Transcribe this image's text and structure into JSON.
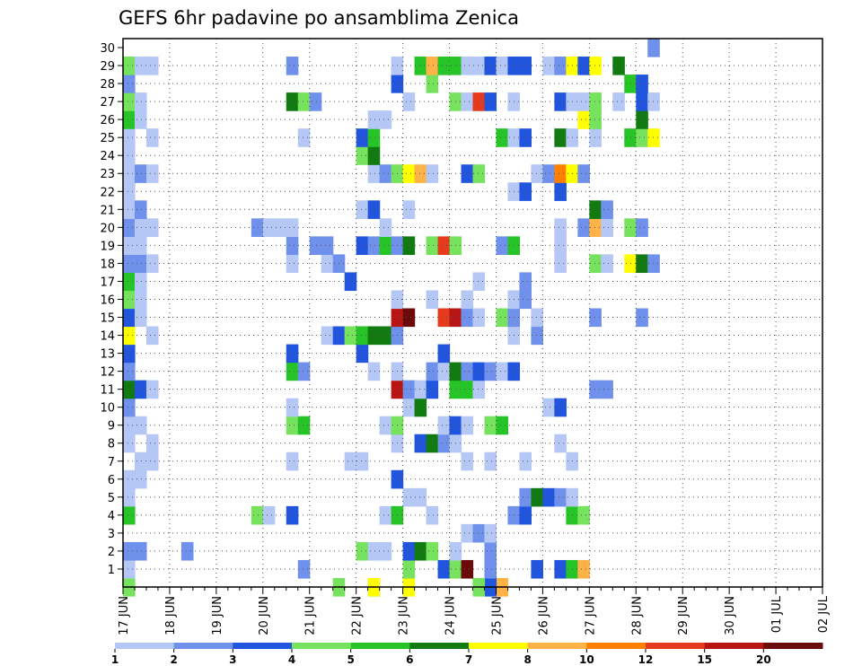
{
  "chart_data": {
    "type": "heatmap",
    "title": "GEFS 6hr padavine po ansamblima Zenica",
    "xlabel": "",
    "ylabel": "",
    "x_tick_labels": [
      "17 JUN",
      "18 JUN",
      "19 JUN",
      "20 JUN",
      "21 JUN",
      "22 JUN",
      "23 JUN",
      "24 JUN",
      "25 JUN",
      "26 JUN",
      "27 JUN",
      "28 JUN",
      "29 JUN",
      "30 JUN",
      "01 JUL",
      "02 JUL"
    ],
    "y_tick_labels": [
      "1",
      "2",
      "3",
      "4",
      "5",
      "6",
      "7",
      "8",
      "9",
      "10",
      "11",
      "12",
      "13",
      "14",
      "15",
      "16",
      "17",
      "18",
      "19",
      "20",
      "21",
      "22",
      "23",
      "24",
      "25",
      "26",
      "27",
      "28",
      "29",
      "30"
    ],
    "y_range": [
      0,
      30
    ],
    "time_steps_per_day": 4,
    "grid": "dotted",
    "colorbar": {
      "placement": "bottom",
      "labels": [
        "1",
        "2",
        "3",
        "4",
        "5",
        "6",
        "7",
        "8",
        "10",
        "12",
        "15",
        "20"
      ],
      "colors": [
        "#b4c7f5",
        "#6f91ec",
        "#2255dd",
        "#76e25e",
        "#26c426",
        "#117a11",
        "#ffff00",
        "#ffb347",
        "#ff7f00",
        "#e53a1e",
        "#b81414",
        "#6b0a0a"
      ]
    },
    "values": [
      [
        0,
        0,
        3
      ],
      [
        18,
        0,
        3
      ],
      [
        21,
        0,
        1
      ],
      [
        21,
        0,
        6
      ],
      [
        24,
        0,
        6
      ],
      [
        32,
        0,
        7
      ],
      [
        31,
        0,
        2
      ],
      [
        30,
        0,
        3
      ],
      [
        0,
        1,
        0
      ],
      [
        15,
        1,
        1
      ],
      [
        24,
        1,
        3
      ],
      [
        27,
        1,
        2
      ],
      [
        28,
        1,
        3
      ],
      [
        29,
        1,
        11
      ],
      [
        31,
        1,
        1
      ],
      [
        35,
        1,
        2
      ],
      [
        37,
        1,
        2
      ],
      [
        38,
        1,
        4
      ],
      [
        39,
        1,
        7
      ],
      [
        0,
        2,
        1
      ],
      [
        1,
        2,
        1
      ],
      [
        5,
        2,
        1
      ],
      [
        20,
        2,
        3
      ],
      [
        21,
        2,
        0
      ],
      [
        22,
        2,
        0
      ],
      [
        24,
        2,
        2
      ],
      [
        25,
        2,
        5
      ],
      [
        26,
        2,
        3
      ],
      [
        28,
        2,
        0
      ],
      [
        31,
        2,
        1
      ],
      [
        29,
        3,
        0
      ],
      [
        30,
        3,
        1
      ],
      [
        31,
        3,
        0
      ],
      [
        0,
        4,
        4
      ],
      [
        11,
        4,
        3
      ],
      [
        12,
        4,
        0
      ],
      [
        14,
        4,
        2
      ],
      [
        22,
        4,
        0
      ],
      [
        23,
        4,
        4
      ],
      [
        26,
        4,
        0
      ],
      [
        33,
        4,
        1
      ],
      [
        34,
        4,
        2
      ],
      [
        38,
        4,
        4
      ],
      [
        39,
        4,
        3
      ],
      [
        0,
        5,
        0
      ],
      [
        24,
        5,
        0
      ],
      [
        25,
        5,
        0
      ],
      [
        34,
        5,
        1
      ],
      [
        35,
        5,
        5
      ],
      [
        36,
        5,
        2
      ],
      [
        37,
        5,
        1
      ],
      [
        38,
        5,
        0
      ],
      [
        0,
        6,
        0
      ],
      [
        1,
        6,
        0
      ],
      [
        23,
        6,
        2
      ],
      [
        1,
        7,
        0
      ],
      [
        2,
        7,
        0
      ],
      [
        14,
        7,
        0
      ],
      [
        19,
        7,
        0
      ],
      [
        20,
        7,
        0
      ],
      [
        29,
        7,
        0
      ],
      [
        31,
        7,
        0
      ],
      [
        34,
        7,
        0
      ],
      [
        38,
        7,
        0
      ],
      [
        0,
        8,
        0
      ],
      [
        2,
        8,
        0
      ],
      [
        23,
        8,
        0
      ],
      [
        25,
        8,
        2
      ],
      [
        26,
        8,
        5
      ],
      [
        27,
        8,
        1
      ],
      [
        28,
        8,
        0
      ],
      [
        37,
        8,
        0
      ],
      [
        0,
        9,
        0
      ],
      [
        1,
        9,
        0
      ],
      [
        14,
        9,
        3
      ],
      [
        15,
        9,
        4
      ],
      [
        22,
        9,
        0
      ],
      [
        23,
        9,
        3
      ],
      [
        27,
        9,
        0
      ],
      [
        28,
        9,
        2
      ],
      [
        29,
        9,
        0
      ],
      [
        31,
        9,
        3
      ],
      [
        32,
        9,
        4
      ],
      [
        0,
        10,
        1
      ],
      [
        14,
        10,
        0
      ],
      [
        24,
        10,
        0
      ],
      [
        25,
        10,
        5
      ],
      [
        36,
        10,
        0
      ],
      [
        37,
        10,
        2
      ],
      [
        0,
        11,
        5
      ],
      [
        1,
        11,
        2
      ],
      [
        2,
        11,
        0
      ],
      [
        23,
        11,
        10
      ],
      [
        24,
        11,
        1
      ],
      [
        25,
        11,
        0
      ],
      [
        26,
        11,
        2
      ],
      [
        28,
        11,
        4
      ],
      [
        29,
        11,
        4
      ],
      [
        30,
        11,
        0
      ],
      [
        40,
        11,
        1
      ],
      [
        41,
        11,
        1
      ],
      [
        0,
        12,
        1
      ],
      [
        14,
        12,
        4
      ],
      [
        15,
        12,
        1
      ],
      [
        21,
        12,
        0
      ],
      [
        23,
        12,
        0
      ],
      [
        26,
        12,
        1
      ],
      [
        27,
        12,
        0
      ],
      [
        28,
        12,
        5
      ],
      [
        29,
        12,
        1
      ],
      [
        30,
        12,
        2
      ],
      [
        31,
        12,
        1
      ],
      [
        32,
        12,
        0
      ],
      [
        33,
        12,
        2
      ],
      [
        0,
        13,
        2
      ],
      [
        14,
        13,
        2
      ],
      [
        20,
        13,
        2
      ],
      [
        27,
        13,
        2
      ],
      [
        0,
        14,
        6
      ],
      [
        2,
        14,
        0
      ],
      [
        17,
        14,
        0
      ],
      [
        18,
        14,
        2
      ],
      [
        19,
        14,
        3
      ],
      [
        20,
        14,
        4
      ],
      [
        21,
        14,
        5
      ],
      [
        22,
        14,
        5
      ],
      [
        23,
        14,
        1
      ],
      [
        33,
        14,
        0
      ],
      [
        35,
        14,
        1
      ],
      [
        0,
        15,
        2
      ],
      [
        1,
        15,
        0
      ],
      [
        23,
        15,
        10
      ],
      [
        24,
        15,
        11
      ],
      [
        27,
        15,
        9
      ],
      [
        28,
        15,
        10
      ],
      [
        29,
        15,
        1
      ],
      [
        30,
        15,
        0
      ],
      [
        32,
        15,
        3
      ],
      [
        33,
        15,
        1
      ],
      [
        35,
        15,
        0
      ],
      [
        40,
        15,
        1
      ],
      [
        44,
        15,
        1
      ],
      [
        0,
        16,
        3
      ],
      [
        1,
        16,
        0
      ],
      [
        23,
        16,
        0
      ],
      [
        26,
        16,
        0
      ],
      [
        29,
        16,
        0
      ],
      [
        33,
        16,
        0
      ],
      [
        34,
        16,
        1
      ],
      [
        0,
        17,
        4
      ],
      [
        1,
        17,
        0
      ],
      [
        19,
        17,
        2
      ],
      [
        30,
        17,
        0
      ],
      [
        34,
        17,
        1
      ],
      [
        0,
        18,
        1
      ],
      [
        1,
        18,
        1
      ],
      [
        2,
        18,
        0
      ],
      [
        14,
        18,
        0
      ],
      [
        17,
        18,
        0
      ],
      [
        18,
        18,
        1
      ],
      [
        37,
        18,
        0
      ],
      [
        40,
        18,
        3
      ],
      [
        41,
        18,
        0
      ],
      [
        43,
        18,
        6
      ],
      [
        44,
        18,
        5
      ],
      [
        45,
        18,
        1
      ],
      [
        0,
        19,
        0
      ],
      [
        1,
        19,
        0
      ],
      [
        14,
        19,
        1
      ],
      [
        16,
        19,
        1
      ],
      [
        17,
        19,
        1
      ],
      [
        20,
        19,
        2
      ],
      [
        21,
        19,
        1
      ],
      [
        22,
        19,
        4
      ],
      [
        23,
        19,
        1
      ],
      [
        24,
        19,
        5
      ],
      [
        26,
        19,
        3
      ],
      [
        27,
        19,
        9
      ],
      [
        28,
        19,
        3
      ],
      [
        32,
        19,
        1
      ],
      [
        33,
        19,
        4
      ],
      [
        37,
        19,
        0
      ],
      [
        0,
        20,
        1
      ],
      [
        1,
        20,
        0
      ],
      [
        2,
        20,
        0
      ],
      [
        11,
        20,
        1
      ],
      [
        12,
        20,
        0
      ],
      [
        13,
        20,
        0
      ],
      [
        14,
        20,
        0
      ],
      [
        22,
        20,
        0
      ],
      [
        37,
        20,
        0
      ],
      [
        39,
        20,
        1
      ],
      [
        40,
        20,
        7
      ],
      [
        41,
        20,
        0
      ],
      [
        43,
        20,
        3
      ],
      [
        44,
        20,
        1
      ],
      [
        0,
        21,
        0
      ],
      [
        1,
        21,
        1
      ],
      [
        20,
        21,
        0
      ],
      [
        21,
        21,
        2
      ],
      [
        24,
        21,
        0
      ],
      [
        40,
        21,
        5
      ],
      [
        41,
        21,
        1
      ],
      [
        0,
        22,
        0
      ],
      [
        33,
        22,
        0
      ],
      [
        34,
        22,
        2
      ],
      [
        37,
        22,
        2
      ],
      [
        0,
        23,
        0
      ],
      [
        1,
        23,
        1
      ],
      [
        2,
        23,
        0
      ],
      [
        21,
        23,
        0
      ],
      [
        22,
        23,
        1
      ],
      [
        23,
        23,
        3
      ],
      [
        24,
        23,
        6
      ],
      [
        25,
        23,
        7
      ],
      [
        26,
        23,
        0
      ],
      [
        29,
        23,
        2
      ],
      [
        30,
        23,
        3
      ],
      [
        35,
        23,
        0
      ],
      [
        36,
        23,
        1
      ],
      [
        37,
        23,
        8
      ],
      [
        38,
        23,
        6
      ],
      [
        39,
        23,
        1
      ],
      [
        0,
        24,
        0
      ],
      [
        20,
        24,
        3
      ],
      [
        21,
        24,
        5
      ],
      [
        0,
        25,
        0
      ],
      [
        2,
        25,
        0
      ],
      [
        15,
        25,
        0
      ],
      [
        20,
        25,
        2
      ],
      [
        21,
        25,
        4
      ],
      [
        32,
        25,
        4
      ],
      [
        33,
        25,
        0
      ],
      [
        34,
        25,
        2
      ],
      [
        37,
        25,
        5
      ],
      [
        38,
        25,
        0
      ],
      [
        40,
        25,
        0
      ],
      [
        43,
        25,
        4
      ],
      [
        44,
        25,
        3
      ],
      [
        45,
        25,
        6
      ],
      [
        0,
        26,
        4
      ],
      [
        1,
        26,
        0
      ],
      [
        21,
        26,
        0
      ],
      [
        22,
        26,
        0
      ],
      [
        39,
        26,
        6
      ],
      [
        40,
        26,
        3
      ],
      [
        44,
        26,
        5
      ],
      [
        0,
        27,
        3
      ],
      [
        1,
        27,
        0
      ],
      [
        14,
        27,
        5
      ],
      [
        15,
        27,
        3
      ],
      [
        16,
        27,
        1
      ],
      [
        24,
        27,
        0
      ],
      [
        28,
        27,
        3
      ],
      [
        29,
        27,
        0
      ],
      [
        30,
        27,
        9
      ],
      [
        31,
        27,
        2
      ],
      [
        33,
        27,
        0
      ],
      [
        37,
        27,
        2
      ],
      [
        38,
        27,
        0
      ],
      [
        39,
        27,
        0
      ],
      [
        40,
        27,
        3
      ],
      [
        42,
        27,
        0
      ],
      [
        44,
        27,
        2
      ],
      [
        45,
        27,
        0
      ],
      [
        0,
        28,
        1
      ],
      [
        23,
        28,
        2
      ],
      [
        26,
        28,
        3
      ],
      [
        43,
        28,
        4
      ],
      [
        44,
        28,
        2
      ],
      [
        0,
        29,
        3
      ],
      [
        1,
        29,
        0
      ],
      [
        2,
        29,
        0
      ],
      [
        14,
        29,
        1
      ],
      [
        23,
        29,
        0
      ],
      [
        25,
        29,
        4
      ],
      [
        26,
        29,
        7
      ],
      [
        27,
        29,
        4
      ],
      [
        28,
        29,
        4
      ],
      [
        29,
        29,
        0
      ],
      [
        30,
        29,
        0
      ],
      [
        31,
        29,
        2
      ],
      [
        32,
        29,
        0
      ],
      [
        33,
        29,
        2
      ],
      [
        34,
        29,
        2
      ],
      [
        36,
        29,
        0
      ],
      [
        37,
        29,
        1
      ],
      [
        38,
        29,
        6
      ],
      [
        39,
        29,
        2
      ],
      [
        40,
        29,
        6
      ],
      [
        42,
        29,
        5
      ],
      [
        45,
        30,
        1
      ]
    ]
  }
}
